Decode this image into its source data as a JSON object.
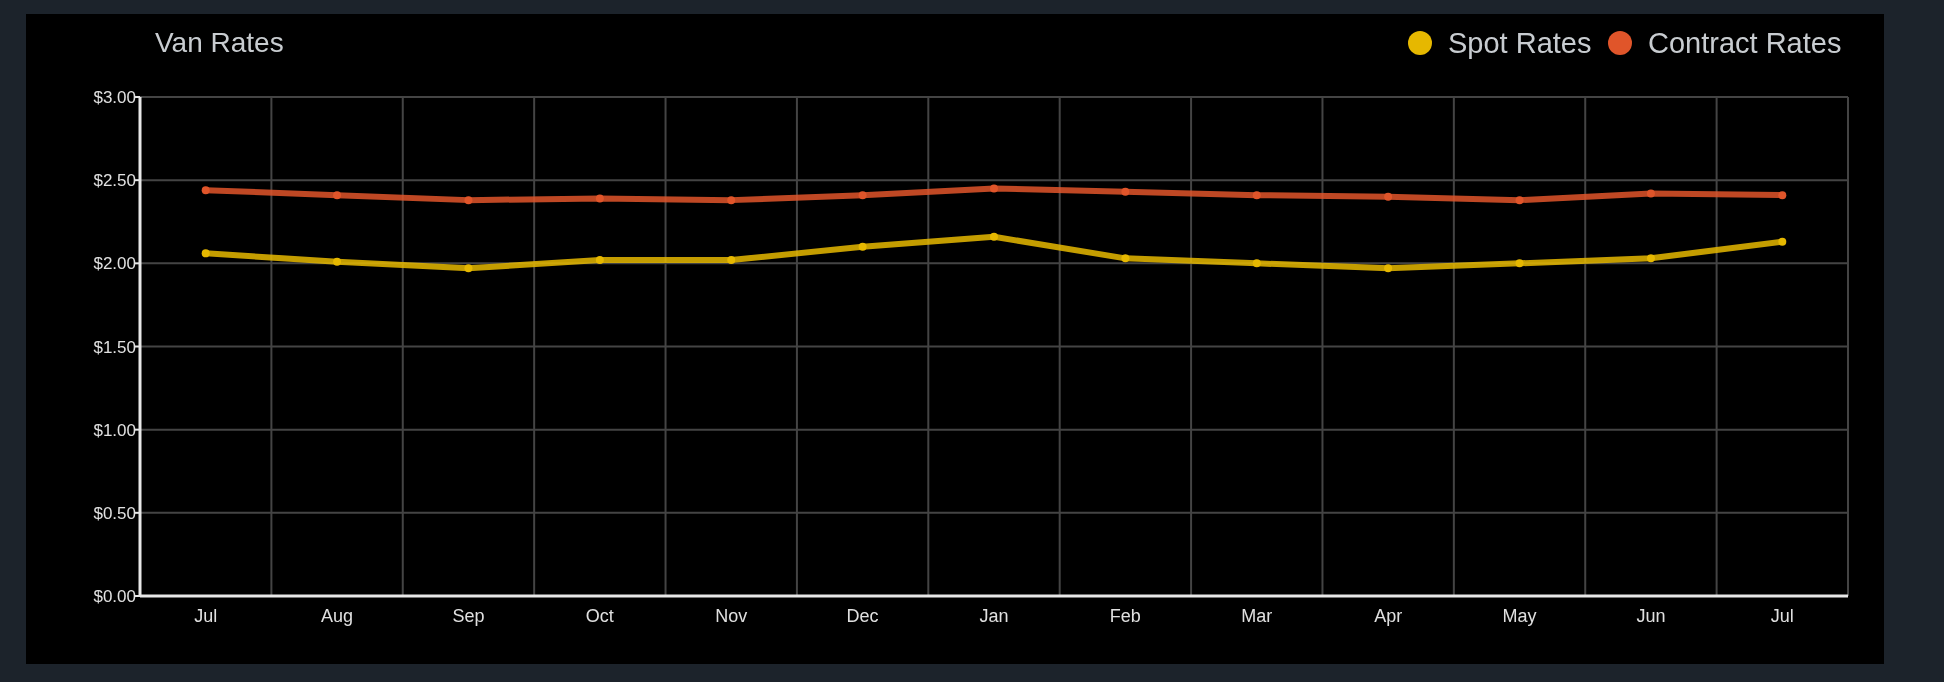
{
  "chart_data": {
    "type": "line",
    "title": "Van Rates",
    "categories": [
      "Jul",
      "Aug",
      "Sep",
      "Oct",
      "Nov",
      "Dec",
      "Jan",
      "Feb",
      "Mar",
      "Apr",
      "May",
      "Jun",
      "Jul"
    ],
    "series": [
      {
        "name": "Spot Rates",
        "color": "#e6b800",
        "values": [
          2.06,
          2.01,
          1.97,
          2.02,
          2.02,
          2.1,
          2.16,
          2.03,
          2.0,
          1.97,
          2.0,
          2.03,
          2.13
        ]
      },
      {
        "name": "Contract Rates",
        "color": "#e0552a",
        "values": [
          2.44,
          2.41,
          2.38,
          2.39,
          2.38,
          2.41,
          2.45,
          2.43,
          2.41,
          2.4,
          2.38,
          2.42,
          2.41
        ]
      }
    ],
    "ylim": [
      0,
      3
    ],
    "yticks": [
      {
        "value": 0,
        "label": "$0.00"
      },
      {
        "value": 0.5,
        "label": "$0.50"
      },
      {
        "value": 1,
        "label": "$1.00"
      },
      {
        "value": 1.5,
        "label": "$1.50"
      },
      {
        "value": 2,
        "label": "$2.00"
      },
      {
        "value": 2.5,
        "label": "$2.50"
      },
      {
        "value": 3,
        "label": "$3.00"
      }
    ],
    "grid": true,
    "legend": "top right",
    "marker": "circle"
  }
}
